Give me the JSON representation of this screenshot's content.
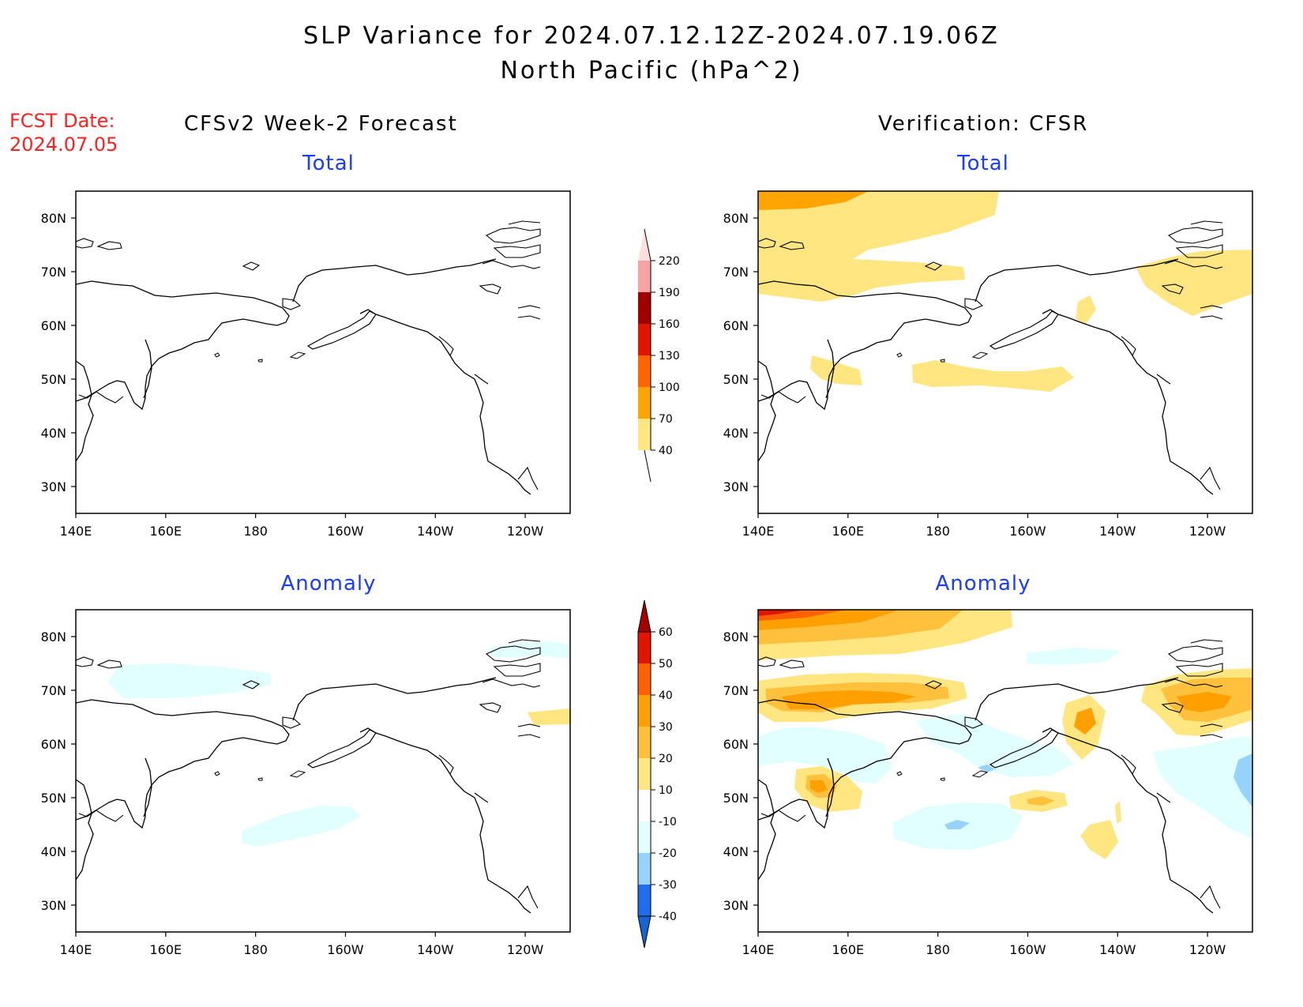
{
  "title_line1": "SLP Variance for 2024.07.12.12Z-2024.07.19.06Z",
  "title_line2": "North Pacific (hPa^2)",
  "fcst_label": "FCST Date:",
  "fcst_date": "2024.07.05",
  "left_column_title": "CFSv2 Week-2 Forecast",
  "right_column_title": "Verification: CFSR",
  "panel_total_label": "Total",
  "panel_anomaly_label": "Anomaly",
  "axes": {
    "lat_labels": [
      "30N",
      "40N",
      "50N",
      "60N",
      "70N",
      "80N"
    ],
    "lat_values": [
      30,
      40,
      50,
      60,
      70,
      80
    ],
    "lon_labels": [
      "140E",
      "160E",
      "180",
      "160W",
      "140W",
      "120W"
    ],
    "lon_values": [
      140,
      160,
      180,
      200,
      220,
      240
    ],
    "lon_range": [
      140,
      250
    ],
    "lat_range": [
      25,
      85
    ]
  },
  "colorbar_total": {
    "levels": [
      "40",
      "70",
      "100",
      "130",
      "160",
      "190",
      "220"
    ],
    "colors": [
      "#ffe680",
      "#ffa400",
      "#ff6400",
      "#e11400",
      "#a00000",
      "#f5a3a3",
      "#fde0dc"
    ]
  },
  "colorbar_anomaly": {
    "levels": [
      "-40",
      "-30",
      "-20",
      "-10",
      "10",
      "20",
      "30",
      "40",
      "50",
      "60"
    ],
    "colors": [
      "#1464d2",
      "#1e6eeb",
      "#2882f0",
      "#96d2fa",
      "#e1ffff",
      "#ffffff",
      "#ffe680",
      "#ffc03c",
      "#ffa000",
      "#ff6000",
      "#e11400",
      "#a50000"
    ]
  },
  "colors": {
    "title_red": "#ff2020",
    "subtitle_blue": "#1a3cff"
  }
}
